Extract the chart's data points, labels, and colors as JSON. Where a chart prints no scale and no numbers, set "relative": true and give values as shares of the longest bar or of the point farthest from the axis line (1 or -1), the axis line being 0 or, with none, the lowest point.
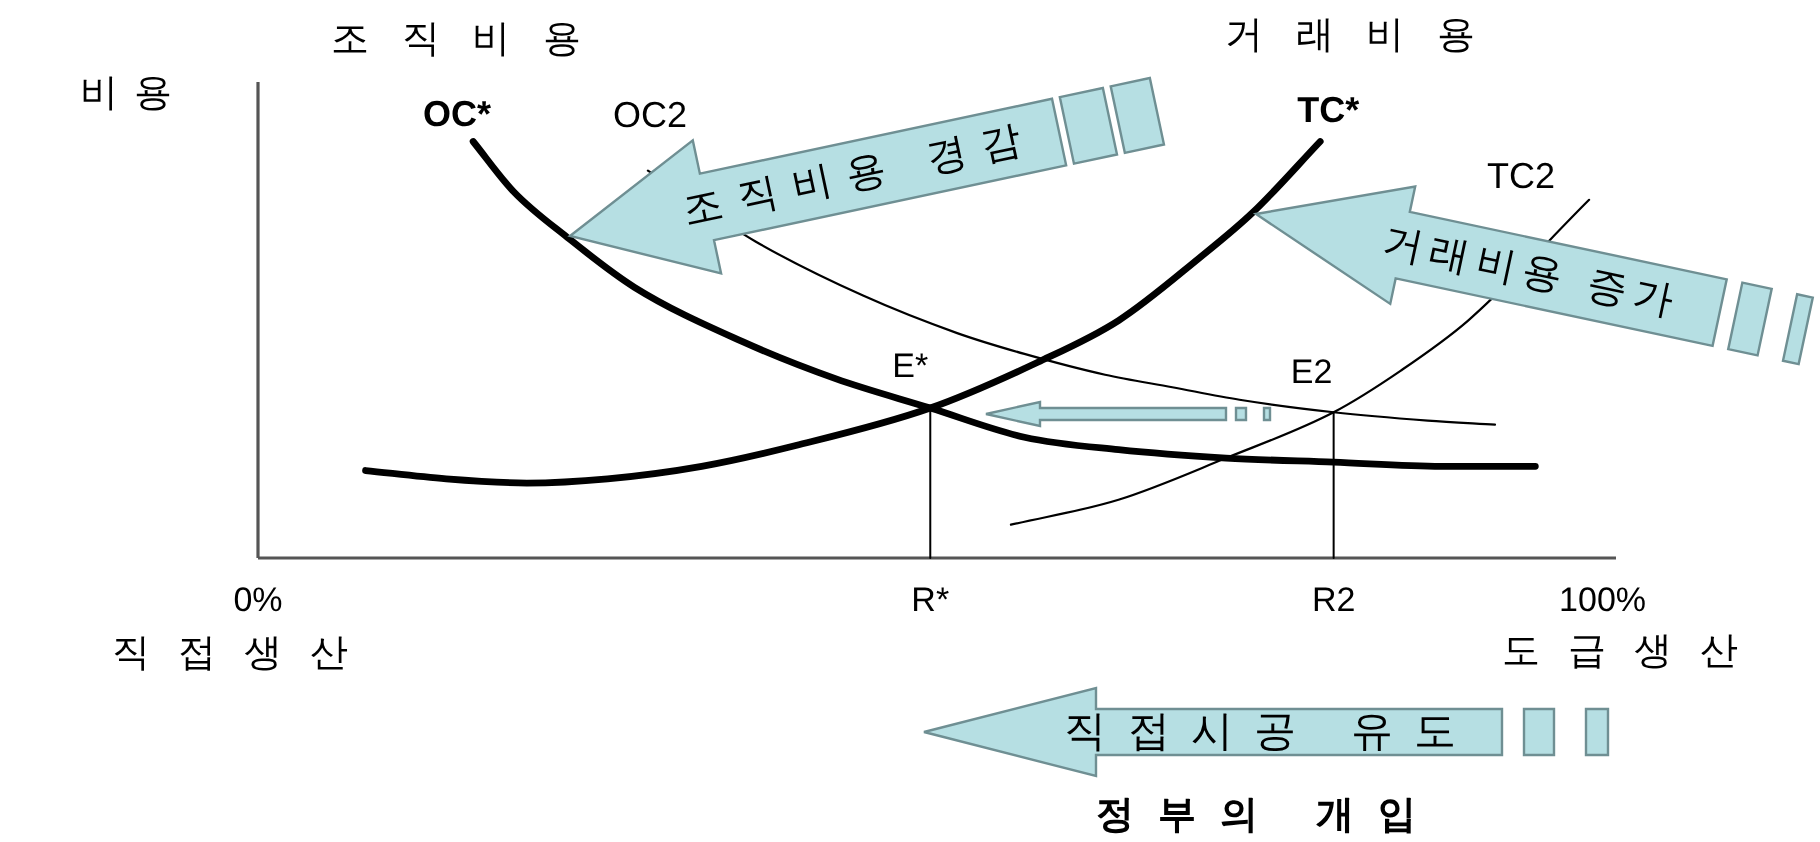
{
  "chart_data": {
    "type": "line",
    "ylabel": "비용",
    "relative": true,
    "tick_labels": "x",
    "xlim": [
      0,
      101
    ],
    "xticks": [
      {
        "value": 0,
        "label": "0%"
      },
      {
        "value": 50,
        "label": "R*"
      },
      {
        "value": 80,
        "label": "R2"
      },
      {
        "value": 100,
        "label": "100%"
      }
    ],
    "series": [
      {
        "name": "OC*",
        "color": "#000000",
        "x": [
          16,
          19,
          23,
          28,
          36,
          43,
          50,
          57,
          64,
          72,
          80,
          88,
          95
        ],
        "values": [
          1,
          0.88,
          0.77,
          0.65,
          0.52,
          0.43,
          0.36,
          0.29,
          0.26,
          0.24,
          0.23,
          0.22,
          0.22
        ]
      },
      {
        "name": "TC*",
        "color": "#000000",
        "x": [
          8,
          14,
          20,
          26,
          33,
          40,
          50,
          58,
          64,
          70,
          74,
          79
        ],
        "values": [
          0.21,
          0.19,
          0.18,
          0.19,
          0.22,
          0.27,
          0.36,
          0.47,
          0.57,
          0.72,
          0.83,
          1
        ]
      },
      {
        "name": "OC2",
        "color": "#000000",
        "x": [
          29,
          37,
          45,
          52,
          57,
          63,
          68,
          73,
          80,
          87,
          92
        ],
        "values": [
          0.93,
          0.76,
          0.63,
          0.54,
          0.49,
          0.44,
          0.41,
          0.38,
          0.35,
          0.33,
          0.32
        ]
      },
      {
        "name": "TC2",
        "color": "#000000",
        "x": [
          56,
          64,
          72,
          80,
          85,
          90,
          99
        ],
        "values": [
          0.08,
          0.14,
          0.24,
          0.35,
          0.45,
          0.57,
          0.86
        ]
      },
      {
        "color": "#000000",
        "x": [
          50,
          50
        ],
        "values": [
          0,
          0.36
        ]
      },
      {
        "color": "#000000",
        "x": [
          80,
          80
        ],
        "values": [
          0,
          0.35
        ]
      }
    ],
    "annotations": [
      "조직비용",
      "거래비용",
      "직접생산",
      "도급생산",
      "조직비용 경감",
      "거래비용 증가",
      "직접시공 유도",
      "정부의 개입",
      {
        "text": "E*",
        "x": 50,
        "y": 0.36
      },
      {
        "text": "E2",
        "x": 80,
        "y": 0.35
      }
    ]
  }
}
